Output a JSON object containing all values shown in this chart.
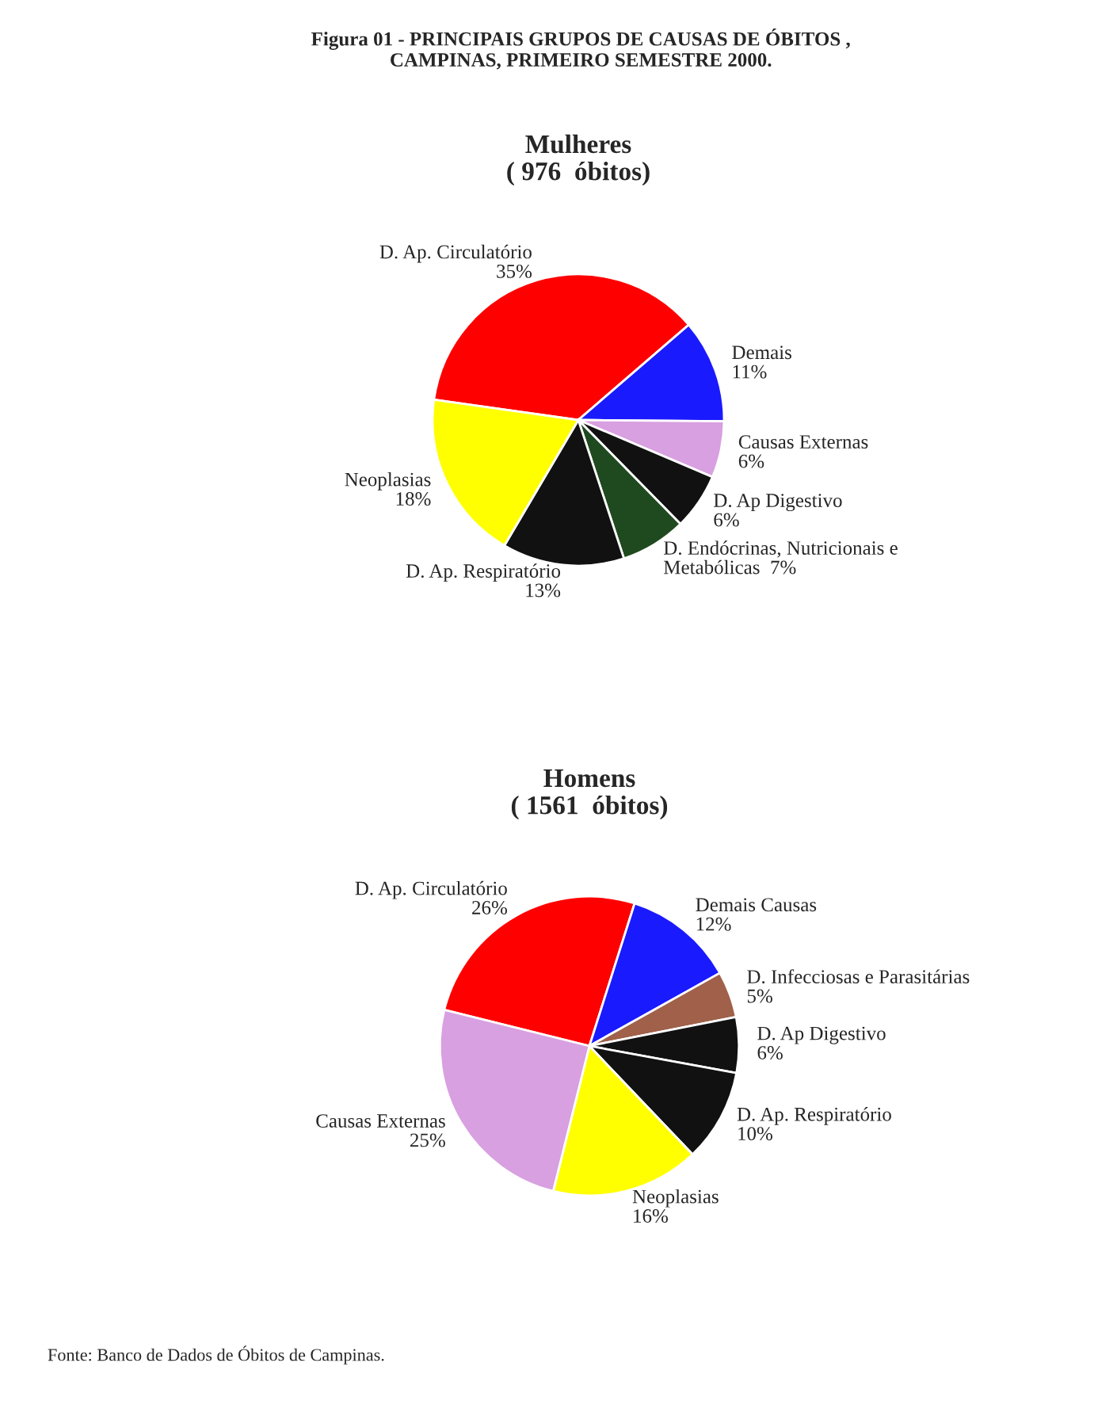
{
  "chart_data": [
    {
      "type": "pie",
      "title": "Mulheres",
      "subtitle": "( 976  óbitos)",
      "annotations": [
        "Figura 01 - PRINCIPAIS GRUPOS DE CAUSAS DE ÓBITOS ,\nCAMPINAS, PRIMEIRO SEMESTRE 2000."
      ],
      "categories": [
        "D. Ap. Circulatório",
        "Demais",
        "Causas Externas",
        "D. Ap Digestivo",
        "D. Endócrinas, Nutricionais e\nMetabólicas",
        "D. Ap. Respiratório",
        "Neoplasias"
      ],
      "values": [
        35,
        11,
        6,
        6,
        7,
        13,
        18
      ],
      "value_labels": [
        "35%",
        "11%",
        "6%",
        "6%",
        "7%",
        "13%",
        "18%"
      ],
      "colors": [
        "#ff0000",
        "#1a1aff",
        "#d8a0e0",
        "#111111",
        "#1f4a1f",
        "#111111",
        "#ffff00"
      ]
    },
    {
      "type": "pie",
      "title": "Homens",
      "subtitle": "( 1561  óbitos)",
      "annotations": [
        "Fonte: Banco de Dados de Óbitos de Campinas."
      ],
      "categories": [
        "D. Ap. Circulatório",
        "Demais Causas",
        "D. Infecciosas e Parasitárias",
        "D. Ap Digestivo",
        "D. Ap. Respiratório",
        "Neoplasias",
        "Causas Externas"
      ],
      "values": [
        26,
        12,
        5,
        6,
        10,
        16,
        25
      ],
      "value_labels": [
        "26%",
        "12%",
        "5%",
        "6%",
        "10%",
        "16%",
        "25%"
      ],
      "colors": [
        "#ff0000",
        "#1a1aff",
        "#a0604a",
        "#111111",
        "#111111",
        "#ffff00",
        "#d8a0e0"
      ]
    }
  ]
}
